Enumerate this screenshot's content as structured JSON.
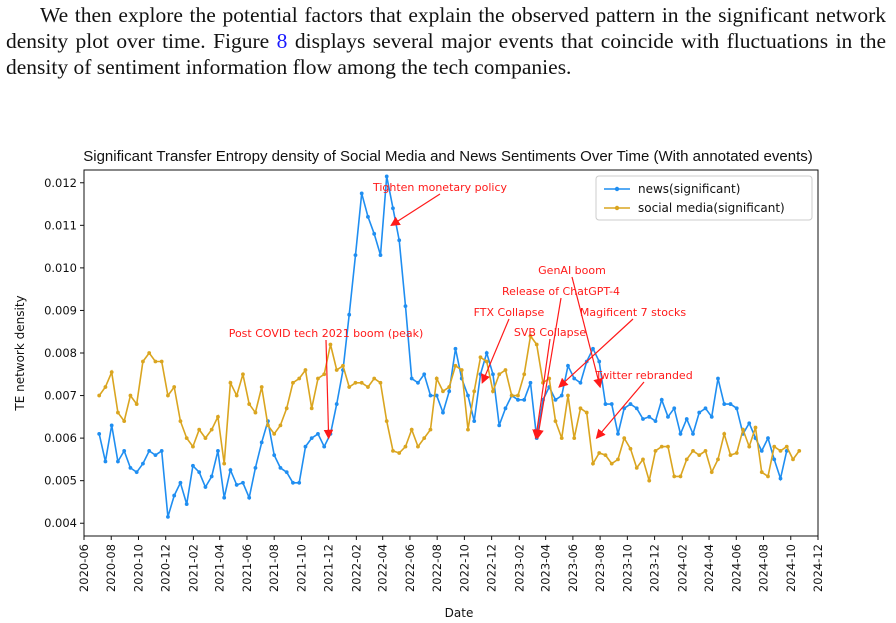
{
  "paragraph": {
    "before_ref": "We then explore the potential factors that explain the observed pattern in the significant network density plot over time. Figure ",
    "ref": "8",
    "after_ref": " displays several major events that coincide with fluctuations in the density of sentiment information flow among the tech companies."
  },
  "colors": {
    "news": "#1f8ef1",
    "social": "#daa520",
    "annotation": "#ff1a1a"
  },
  "chart_data": {
    "type": "line",
    "title": "Significant Transfer Entropy density of Social Media and News Sentiments Over Time (With annotated events)",
    "xlabel": "Date",
    "ylabel": "TE network density",
    "xlim": [
      "2020-06",
      "2024-12"
    ],
    "ylim": [
      0.0037,
      0.0123
    ],
    "x_ticks": [
      "2020-06",
      "2020-08",
      "2020-10",
      "2020-12",
      "2021-02",
      "2021-04",
      "2021-06",
      "2021-08",
      "2021-10",
      "2021-12",
      "2022-02",
      "2022-04",
      "2022-06",
      "2022-08",
      "2022-10",
      "2022-12",
      "2023-02",
      "2023-04",
      "2023-06",
      "2023-08",
      "2023-10",
      "2023-12",
      "2024-02",
      "2024-04",
      "2024-06",
      "2024-08",
      "2024-10",
      "2024-12"
    ],
    "y_ticks": [
      "0.004",
      "0.005",
      "0.006",
      "0.007",
      "0.008",
      "0.009",
      "0.010",
      "0.011",
      "0.012"
    ],
    "legend_position": "top-right",
    "series": [
      {
        "name": "news(significant)",
        "x_start": "2020-07-05",
        "step_days": 14,
        "values": [
          0.0061,
          0.00545,
          0.0063,
          0.00545,
          0.0057,
          0.0053,
          0.0052,
          0.0054,
          0.0057,
          0.0056,
          0.0057,
          0.00415,
          0.00465,
          0.00495,
          0.00445,
          0.00535,
          0.0052,
          0.00485,
          0.0051,
          0.0057,
          0.0046,
          0.00525,
          0.0049,
          0.00495,
          0.0046,
          0.0053,
          0.0059,
          0.0064,
          0.0056,
          0.0053,
          0.0052,
          0.00495,
          0.00495,
          0.0058,
          0.006,
          0.0061,
          0.0058,
          0.0061,
          0.0068,
          0.0076,
          0.0089,
          0.0103,
          0.01175,
          0.0112,
          0.0108,
          0.0103,
          0.01215,
          0.0114,
          0.01065,
          0.0091,
          0.0074,
          0.0073,
          0.0075,
          0.007,
          0.007,
          0.0066,
          0.0071,
          0.0081,
          0.0074,
          0.007,
          0.0064,
          0.0075,
          0.008,
          0.0075,
          0.0063,
          0.0067,
          0.007,
          0.0069,
          0.0069,
          0.0073,
          0.006,
          0.0069,
          0.0072,
          0.0069,
          0.007,
          0.0077,
          0.0074,
          0.0073,
          0.0078,
          0.0081,
          0.0078,
          0.0068,
          0.0068,
          0.0061,
          0.0067,
          0.0068,
          0.0067,
          0.00645,
          0.0065,
          0.0064,
          0.0069,
          0.0065,
          0.0067,
          0.0061,
          0.00645,
          0.0061,
          0.0066,
          0.0067,
          0.0065,
          0.0074,
          0.0068,
          0.0068,
          0.0067,
          0.0061,
          0.00635,
          0.006,
          0.0057,
          0.006,
          0.0055,
          0.00505,
          0.0057
        ]
      },
      {
        "name": "social media(significant)",
        "x_start": "2020-07-05",
        "step_days": 14,
        "values": [
          0.007,
          0.0072,
          0.00755,
          0.0066,
          0.0064,
          0.007,
          0.0068,
          0.0078,
          0.008,
          0.0078,
          0.0078,
          0.007,
          0.0072,
          0.0064,
          0.006,
          0.0058,
          0.0062,
          0.006,
          0.0062,
          0.0065,
          0.0054,
          0.0073,
          0.007,
          0.0075,
          0.0068,
          0.0066,
          0.0072,
          0.0063,
          0.0061,
          0.0063,
          0.0067,
          0.0073,
          0.0074,
          0.0076,
          0.0067,
          0.0074,
          0.0075,
          0.0082,
          0.0076,
          0.0077,
          0.0072,
          0.0073,
          0.0073,
          0.0072,
          0.0074,
          0.0073,
          0.0064,
          0.0057,
          0.00565,
          0.0058,
          0.0062,
          0.0058,
          0.006,
          0.0062,
          0.0074,
          0.0071,
          0.0072,
          0.0077,
          0.0076,
          0.0062,
          0.0071,
          0.0079,
          0.0078,
          0.0071,
          0.0075,
          0.0076,
          0.007,
          0.007,
          0.0075,
          0.0084,
          0.0082,
          0.0073,
          0.0074,
          0.0064,
          0.006,
          0.007,
          0.006,
          0.0067,
          0.0066,
          0.0054,
          0.00565,
          0.0056,
          0.0054,
          0.0055,
          0.006,
          0.00575,
          0.0053,
          0.0055,
          0.005,
          0.0057,
          0.0058,
          0.0058,
          0.0051,
          0.0051,
          0.0055,
          0.0057,
          0.0056,
          0.0057,
          0.0052,
          0.0055,
          0.0061,
          0.0056,
          0.00565,
          0.0062,
          0.0058,
          0.00625,
          0.0052,
          0.0051,
          0.0058,
          0.0057,
          0.0058,
          0.0055,
          0.0057
        ]
      }
    ],
    "annotations": [
      {
        "label": "Tighten monetary policy",
        "x": "2022-04-20",
        "y": 0.011
      },
      {
        "label": "Post COVID tech 2021 boom (peak)",
        "x": "2021-12-01",
        "y": 0.006
      },
      {
        "label": "FTX Collapse",
        "x": "2022-11-10",
        "y": 0.0073
      },
      {
        "label": "SVB Collapse",
        "x": "2023-03-10",
        "y": 0.006
      },
      {
        "label": "Release of ChatGPT-4",
        "x": "2023-03-14",
        "y": 0.006
      },
      {
        "label": "GenAI boom",
        "x": "2023-08-01",
        "y": 0.0072
      },
      {
        "label": "Magificent 7 stocks",
        "x": "2023-05-01",
        "y": 0.0072
      },
      {
        "label": "Twitter rebranded",
        "x": "2023-07-24",
        "y": 0.006
      }
    ]
  }
}
